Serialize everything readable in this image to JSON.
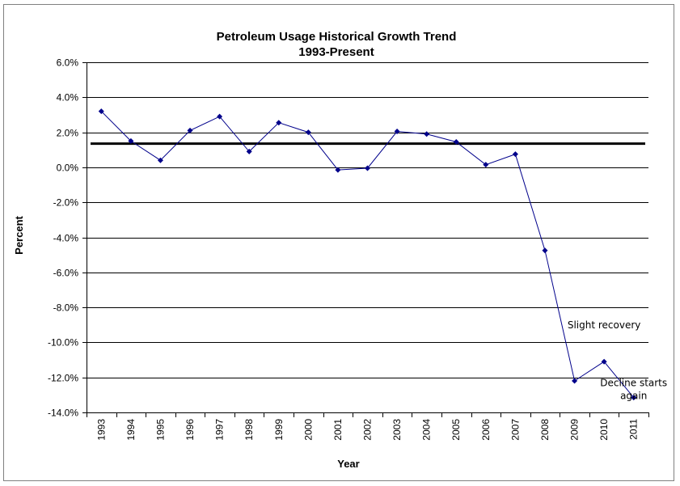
{
  "chart_data": {
    "type": "line",
    "title": "Petroleum Usage Historical Growth Trend",
    "subtitle": "1993-Present",
    "xlabel": "Year",
    "ylabel": "Percent",
    "ylim": [
      -14,
      6
    ],
    "y_ticks": [
      "6.0%",
      "4.0%",
      "2.0%",
      "0.0%",
      "-2.0%",
      "-4.0%",
      "-6.0%",
      "-8.0%",
      "-10.0%",
      "-12.0%",
      "-14.0%"
    ],
    "y_tick_values": [
      6,
      4,
      2,
      0,
      -2,
      -4,
      -6,
      -8,
      -10,
      -12,
      -14
    ],
    "grid": true,
    "legend": "none",
    "categories": [
      "1993",
      "1994",
      "1995",
      "1996",
      "1997",
      "1998",
      "1999",
      "2000",
      "2001",
      "2002",
      "2003",
      "2004",
      "2005",
      "2006",
      "2007",
      "2008",
      "2009",
      "2010",
      "2011"
    ],
    "series": [
      {
        "values": [
          3.2,
          1.5,
          0.4,
          2.1,
          2.9,
          0.9,
          2.55,
          2.0,
          -0.15,
          -0.05,
          2.05,
          1.9,
          1.45,
          0.15,
          0.75,
          -4.75,
          -12.2,
          -11.1,
          -13.15
        ],
        "color": "#00008B"
      }
    ],
    "reference_line": {
      "value": 1.35,
      "color": "#000000"
    },
    "annotations": [
      {
        "lines": [
          "Slight recovery"
        ],
        "x_category": "2010",
        "y": -9.2
      },
      {
        "lines": [
          "Decline starts",
          "again"
        ],
        "x_category": "2011",
        "y": -12.5
      }
    ]
  }
}
